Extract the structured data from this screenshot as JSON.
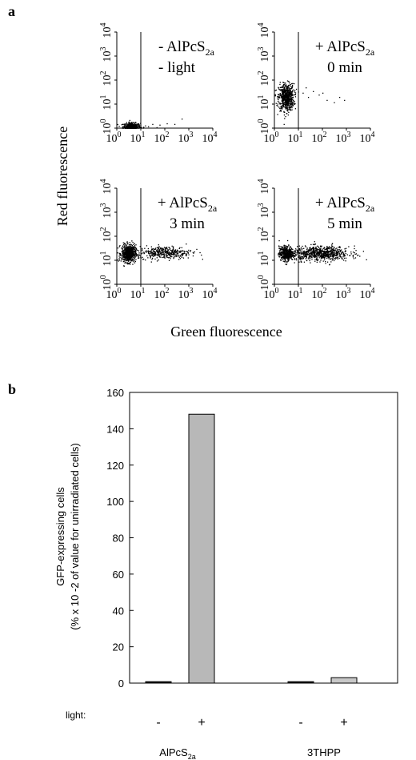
{
  "figure": {
    "panel_a_label": "a",
    "panel_b_label": "b"
  },
  "panel_a": {
    "ylabel": "Red fluorescence",
    "xlabel": "Green fluorescence",
    "tick_exponents": [
      "0",
      "1",
      "2",
      "3",
      "4"
    ],
    "tick_base": "10",
    "plots": [
      {
        "line1": "- AlPcS",
        "line1_sub": "2a",
        "line2": "- light",
        "label_prefix": "",
        "text_anchor": "start"
      },
      {
        "line1": "+ AlPcS",
        "line1_sub": "2a",
        "line2": "0 min",
        "text_anchor": "middle"
      },
      {
        "line1": "+ AlPcS",
        "line1_sub": "2a",
        "line2": "3 min",
        "text_anchor": "middle"
      },
      {
        "line1": "+ AlPcS",
        "line1_sub": "2a",
        "line2": "5 min",
        "text_anchor": "middle"
      }
    ]
  },
  "panel_b": {
    "ylabel_line1": "GFP-expressing cells",
    "ylabel_line2": "(% x 10 -2 of value for unirradiated cells)",
    "light_label": "light:",
    "groups": [
      {
        "name": "AlPcS",
        "name_sub": "2a"
      },
      {
        "name": "3THPP",
        "name_sub": ""
      }
    ],
    "ytick_labels": [
      "0",
      "20",
      "40",
      "60",
      "80",
      "100",
      "120",
      "140",
      "160"
    ]
  },
  "chart_data": [
    {
      "type": "scatter",
      "title": "",
      "xlabel": "Green fluorescence",
      "ylabel": "Red fluorescence",
      "xscale": "log",
      "yscale": "log",
      "xlim": [
        1,
        10000
      ],
      "ylim": [
        1,
        10000
      ],
      "gate": 10,
      "panels": [
        {
          "label": "- AlPcS2a - light",
          "center": [
            4,
            1.2
          ],
          "spread": [
            0.18,
            0.08
          ],
          "n_core": 380,
          "tail_points": [
            [
              15,
              1.3
            ],
            [
              30,
              1.5
            ],
            [
              60,
              1.4
            ],
            [
              120,
              1.6
            ],
            [
              250,
              1.5
            ],
            [
              500,
              2.5
            ],
            [
              20,
              1.2
            ],
            [
              45,
              1.1
            ]
          ]
        },
        {
          "label": "+ AlPcS2a 0 min",
          "center": [
            3,
            20
          ],
          "spread": [
            0.16,
            0.28
          ],
          "n_core": 650,
          "tail_points": [
            [
              15,
              30
            ],
            [
              25,
              20
            ],
            [
              40,
              35
            ],
            [
              70,
              25
            ],
            [
              100,
              30
            ],
            [
              150,
              15
            ],
            [
              300,
              12
            ],
            [
              500,
              20
            ],
            [
              800,
              15
            ],
            [
              20,
              50
            ]
          ]
        },
        {
          "label": "+ AlPcS2a 3 min",
          "center": [
            3,
            20
          ],
          "spread": [
            0.15,
            0.18
          ],
          "n_core": 650,
          "tail_center": [
            100,
            22
          ],
          "tail_spread": [
            0.55,
            0.13
          ],
          "n_tail": 380
        },
        {
          "label": "+ AlPcS2a 5 min",
          "center": [
            3,
            20
          ],
          "spread": [
            0.15,
            0.15
          ],
          "n_core": 450,
          "tail_center": [
            80,
            20
          ],
          "tail_spread": [
            0.6,
            0.15
          ],
          "n_tail": 700
        }
      ]
    },
    {
      "type": "bar",
      "title": "",
      "xlabel": "",
      "ylabel": "GFP-expressing cells (% x 10 -2 of value for unirradiated cells)",
      "ylim": [
        0,
        160
      ],
      "yticks": [
        0,
        20,
        40,
        60,
        80,
        100,
        120,
        140,
        160
      ],
      "groups": [
        "AlPcS2a",
        "3THPP"
      ],
      "categories": [
        "-",
        "+",
        "-",
        "+"
      ],
      "values": [
        0.8,
        148,
        0.8,
        3
      ],
      "colors": [
        "#1a1a1a",
        "#b8b8b8",
        "#1a1a1a",
        "#c8c8c8"
      ]
    }
  ]
}
